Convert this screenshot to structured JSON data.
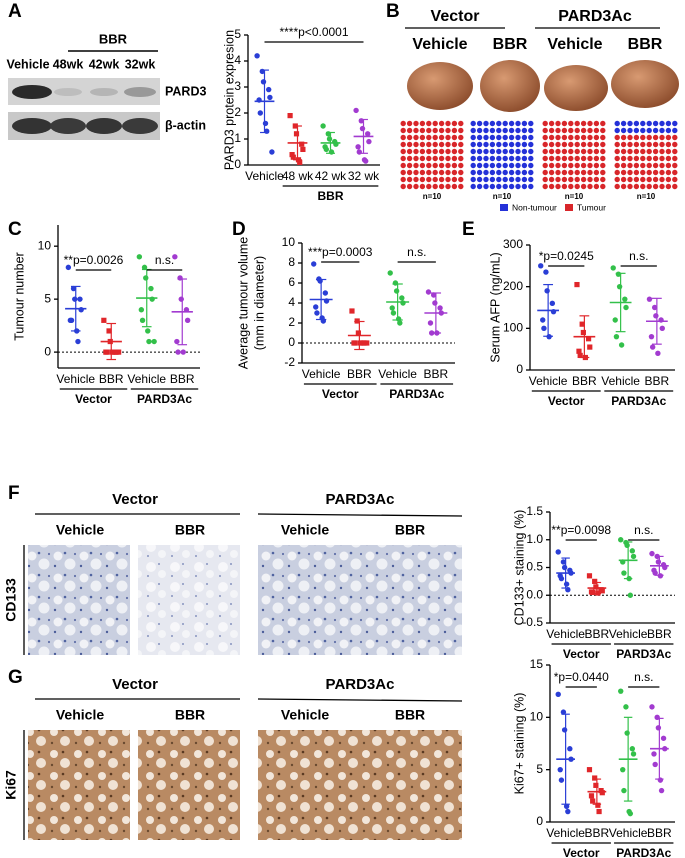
{
  "panel_labels": [
    "A",
    "B",
    "C",
    "D",
    "E",
    "F",
    "G"
  ],
  "blot": {
    "group": "BBR",
    "lanes": [
      "Vehicle",
      "48wk",
      "42wk",
      "32wk"
    ],
    "rows": [
      "PARD3",
      "β-actin"
    ]
  },
  "liver": {
    "groups": [
      {
        "name": "Vector",
        "columns": [
          "Vehicle",
          "BBR"
        ]
      },
      {
        "name": "PARD3Ac",
        "columns": [
          "Vehicle",
          "BBR"
        ]
      }
    ]
  },
  "histology": [
    {
      "stain": "CD133",
      "groups": [
        {
          "name": "Vector",
          "columns": [
            "Vehicle",
            "BBR"
          ]
        },
        {
          "name": "PARD3Ac",
          "columns": [
            "Vehicle",
            "BBR"
          ]
        }
      ]
    },
    {
      "stain": "Ki67",
      "groups": [
        {
          "name": "Vector",
          "columns": [
            "Vehicle",
            "BBR"
          ]
        },
        {
          "name": "PARD3Ac",
          "columns": [
            "Vehicle",
            "BBR"
          ]
        }
      ]
    }
  ],
  "chart_data": [
    {
      "type": "dotplot",
      "ylabel": "PARD3 protein expresion",
      "ylim": [
        0,
        5
      ],
      "yticks": [
        0,
        1,
        2,
        3,
        4,
        5
      ],
      "zero_line": false,
      "groups": [
        {
          "categories": [
            {
              "name": "Vehicle",
              "color": "#2a3ed6",
              "marker": "circle",
              "points": [
                4.2,
                3.6,
                3.2,
                2.9,
                2.6,
                2.5,
                2.0,
                1.6,
                1.3,
                0.5
              ],
              "mean": 2.45,
              "sd": 1.2
            }
          ]
        },
        {
          "name": "BBR",
          "categories": [
            {
              "name": "48 wk",
              "color": "#e0262a",
              "marker": "square",
              "points": [
                1.9,
                1.5,
                1.2,
                0.8,
                0.6,
                0.4,
                0.3,
                0.2,
                0.1
              ],
              "mean": 0.85,
              "sd": 0.65
            },
            {
              "name": "42 wk",
              "color": "#33c04a",
              "marker": "circle",
              "points": [
                1.5,
                1.2,
                1.0,
                0.9,
                0.8,
                0.7,
                0.6,
                0.5
              ],
              "mean": 0.85,
              "sd": 0.4
            },
            {
              "name": "32 wk",
              "color": "#a23bd0",
              "marker": "circle",
              "points": [
                2.1,
                1.7,
                1.4,
                1.2,
                0.9,
                0.7,
                0.5,
                0.2,
                0.15
              ],
              "mean": 1.1,
              "sd": 0.65
            }
          ]
        }
      ],
      "comparisons": [
        {
          "label": "****p<0.0001",
          "span": [
            0,
            3
          ]
        }
      ]
    },
    {
      "type": "waffle",
      "categories": [
        "n=10",
        "n=10",
        "n=10",
        "n=10"
      ],
      "series": [
        {
          "name": "Non-tumour",
          "color": "#2431d8",
          "values": [
            0,
            100,
            0,
            20
          ]
        },
        {
          "name": "Tumour",
          "color": "#d8262a",
          "values": [
            100,
            0,
            100,
            80
          ]
        }
      ]
    },
    {
      "type": "dotplot",
      "ylabel": "Tumour number",
      "ylim": [
        -1.5,
        12
      ],
      "yticks": [
        0,
        5,
        10
      ],
      "zero_line": true,
      "groups": [
        {
          "name": "Vector",
          "categories": [
            {
              "name": "Vehicle",
              "color": "#2a3ed6",
              "marker": "circle",
              "points": [
                8,
                6,
                5,
                5,
                4,
                3,
                3,
                2,
                1
              ],
              "mean": 4.1,
              "sd": 2.1
            },
            {
              "name": "BBR",
              "color": "#e0262a",
              "marker": "square",
              "points": [
                3,
                2,
                1,
                0,
                0,
                0,
                0,
                0,
                0,
                0
              ],
              "mean": 1.0,
              "sd": 1.7
            }
          ]
        },
        {
          "name": "PARD3Ac",
          "categories": [
            {
              "name": "Vehicle",
              "color": "#33c04a",
              "marker": "circle",
              "points": [
                9,
                8,
                7,
                6,
                5,
                4,
                3,
                2,
                1,
                1
              ],
              "mean": 5.1,
              "sd": 2.7
            },
            {
              "name": "BBR",
              "color": "#a23bd0",
              "marker": "circle",
              "points": [
                9,
                7,
                5,
                4,
                3,
                1,
                0,
                0
              ],
              "mean": 3.8,
              "sd": 3.1
            }
          ]
        }
      ],
      "comparisons": [
        {
          "label": "**p=0.0026",
          "span": [
            0,
            1
          ]
        },
        {
          "label": "n.s.",
          "span": [
            2,
            3
          ]
        }
      ]
    },
    {
      "type": "dotplot",
      "ylabel": [
        "Average tumour volume",
        "(mm in diameter)"
      ],
      "ylim": [
        -2,
        10
      ],
      "yticks": [
        -2,
        0,
        2,
        4,
        6,
        8,
        10
      ],
      "zero_line": true,
      "groups": [
        {
          "name": "Vector",
          "categories": [
            {
              "name": "Vehicle",
              "color": "#2a3ed6",
              "marker": "circle",
              "points": [
                7.9,
                6.4,
                6.2,
                5.0,
                4.2,
                3.6,
                3.0,
                2.5,
                2.2
              ],
              "mean": 4.35,
              "sd": 2.0
            },
            {
              "name": "BBR",
              "color": "#e0262a",
              "marker": "square",
              "points": [
                3.2,
                2.2,
                1.0,
                0,
                0,
                0,
                0,
                0,
                0,
                0
              ],
              "mean": 0.75,
              "sd": 1.4
            }
          ]
        },
        {
          "name": "PARD3Ac",
          "categories": [
            {
              "name": "Vehicle",
              "color": "#33c04a",
              "marker": "circle",
              "points": [
                7.0,
                6.0,
                5.2,
                4.5,
                4.0,
                3.5,
                3.0,
                2.4,
                2.0
              ],
              "mean": 4.1,
              "sd": 1.8
            },
            {
              "name": "BBR",
              "color": "#a23bd0",
              "marker": "circle",
              "points": [
                5.1,
                4.8,
                4.0,
                3.5,
                3.0,
                2.0,
                1.0,
                1.0
              ],
              "mean": 3.0,
              "sd": 2.0
            }
          ]
        }
      ],
      "comparisons": [
        {
          "label": "***p=0.0003",
          "span": [
            0,
            1
          ]
        },
        {
          "label": "n.s.",
          "span": [
            2,
            3
          ]
        }
      ]
    },
    {
      "type": "dotplot",
      "ylabel": "Serum AFP (ng/mL)",
      "ylim": [
        0,
        300
      ],
      "yticks": [
        0,
        100,
        200,
        300
      ],
      "zero_line": false,
      "groups": [
        {
          "name": "Vector",
          "categories": [
            {
              "name": "Vehicle",
              "color": "#2a3ed6",
              "marker": "circle",
              "points": [
                250,
                235,
                190,
                160,
                140,
                120,
                100,
                80
              ],
              "mean": 143,
              "sd": 62
            },
            {
              "name": "BBR",
              "color": "#e0262a",
              "marker": "square",
              "points": [
                205,
                110,
                90,
                75,
                55,
                45,
                35,
                30
              ],
              "mean": 80,
              "sd": 50
            }
          ]
        },
        {
          "name": "PARD3Ac",
          "categories": [
            {
              "name": "Vehicle",
              "color": "#33c04a",
              "marker": "circle",
              "points": [
                245,
                230,
                200,
                170,
                150,
                120,
                80,
                60
              ],
              "mean": 162,
              "sd": 70
            },
            {
              "name": "BBR",
              "color": "#a23bd0",
              "marker": "circle",
              "points": [
                170,
                150,
                130,
                120,
                100,
                80,
                55,
                40
              ],
              "mean": 117,
              "sd": 55
            }
          ]
        }
      ],
      "comparisons": [
        {
          "label": "*p=0.0245",
          "span": [
            0,
            1
          ]
        },
        {
          "label": "n.s.",
          "span": [
            2,
            3
          ]
        }
      ]
    },
    {
      "type": "dotplot",
      "ylabel": "CD133+ staining (%)",
      "ylim": [
        -0.5,
        1.5
      ],
      "yticks": [
        -0.5,
        {
          "value": 0,
          "label": "0.0"
        },
        0.5,
        {
          "value": 1,
          "label": "1.0"
        },
        1.5
      ],
      "zero_line": true,
      "groups": [
        {
          "name": "Vector",
          "categories": [
            {
              "name": "Vehicle",
              "color": "#2a3ed6",
              "marker": "circle",
              "points": [
                0.78,
                0.6,
                0.5,
                0.45,
                0.4,
                0.35,
                0.3,
                0.2,
                0.1
              ],
              "mean": 0.4,
              "sd": 0.27
            },
            {
              "name": "BBR",
              "color": "#e0262a",
              "marker": "square",
              "points": [
                0.35,
                0.25,
                0.15,
                0.1,
                0.08,
                0.06,
                0.05,
                0.04
              ],
              "mean": 0.13,
              "sd": 0.1
            }
          ]
        },
        {
          "name": "PARD3Ac",
          "categories": [
            {
              "name": "Vehicle",
              "color": "#33c04a",
              "marker": "circle",
              "points": [
                1.0,
                0.95,
                0.9,
                0.8,
                0.7,
                0.6,
                0.4,
                0.3,
                0.0
              ],
              "mean": 0.63,
              "sd": 0.33
            },
            {
              "name": "BBR",
              "color": "#a23bd0",
              "marker": "circle",
              "points": [
                0.75,
                0.7,
                0.6,
                0.55,
                0.5,
                0.45,
                0.4,
                0.35
              ],
              "mean": 0.53,
              "sd": 0.17
            }
          ]
        }
      ],
      "comparisons": [
        {
          "label": "**p=0.0098",
          "span": [
            0,
            1
          ]
        },
        {
          "label": "n.s.",
          "span": [
            2,
            3
          ]
        }
      ]
    },
    {
      "type": "dotplot",
      "ylabel": "Ki67+ staining (%)",
      "ylim": [
        0,
        15
      ],
      "yticks": [
        0,
        5,
        10,
        15
      ],
      "zero_line": false,
      "groups": [
        {
          "name": "Vector",
          "categories": [
            {
              "name": "Vehicle",
              "color": "#2a3ed6",
              "marker": "circle",
              "points": [
                12.2,
                10.5,
                8.8,
                7.0,
                6.0,
                5.0,
                4.0,
                1.5,
                1.0
              ],
              "mean": 6.0,
              "sd": 4.3
            },
            {
              "name": "BBR",
              "color": "#e0262a",
              "marker": "square",
              "points": [
                5.0,
                4.2,
                3.5,
                3.0,
                2.8,
                2.5,
                2.0,
                1.6,
                1.0
              ],
              "mean": 2.9,
              "sd": 1.2
            }
          ]
        },
        {
          "name": "PARD3Ac",
          "categories": [
            {
              "name": "Vehicle",
              "color": "#33c04a",
              "marker": "circle",
              "points": [
                12.5,
                11,
                8.5,
                7.0,
                6.5,
                5.0,
                3.0,
                1.0,
                0.8
              ],
              "mean": 6.0,
              "sd": 4.0
            },
            {
              "name": "BBR",
              "color": "#a23bd0",
              "marker": "circle",
              "points": [
                11,
                10,
                9,
                8,
                7,
                6.5,
                5.5,
                4,
                3
              ],
              "mean": 7.0,
              "sd": 2.9
            }
          ]
        }
      ],
      "comparisons": [
        {
          "label": "*p=0.0440",
          "span": [
            0,
            1
          ]
        },
        {
          "label": "n.s.",
          "span": [
            2,
            3
          ]
        }
      ]
    }
  ]
}
